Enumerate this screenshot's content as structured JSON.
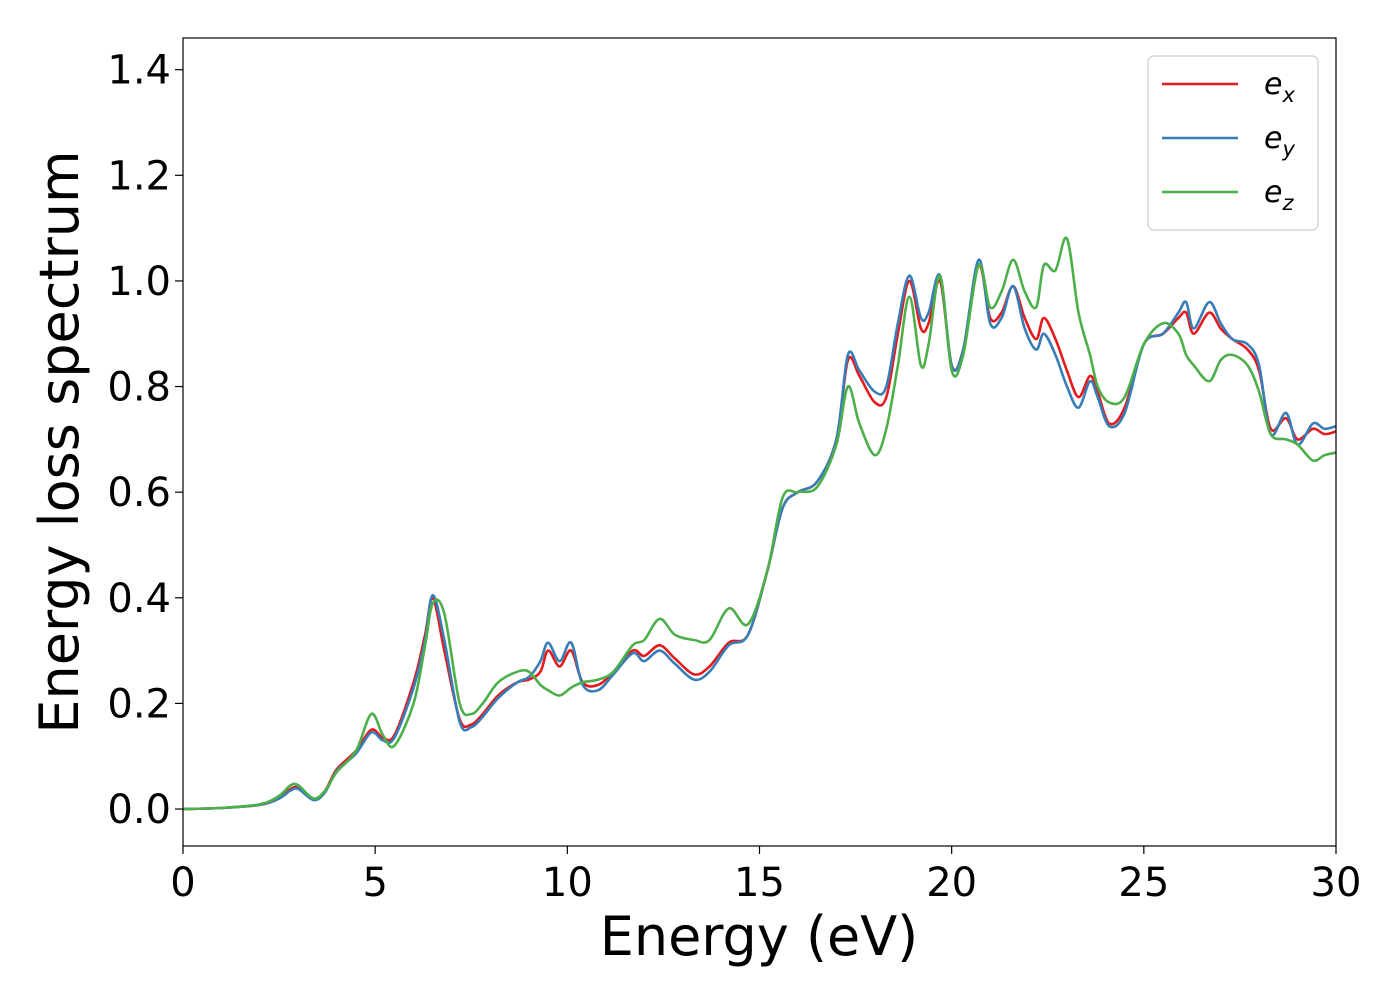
{
  "chart_data": {
    "type": "line",
    "xlabel": "Energy (eV)",
    "ylabel": "Energy loss spectrum",
    "xlim": [
      0,
      30
    ],
    "ylim": [
      -0.07,
      1.46
    ],
    "xticks": [
      0,
      5,
      10,
      15,
      20,
      25,
      30
    ],
    "xtick_labels": [
      "0",
      "5",
      "10",
      "15",
      "20",
      "25",
      "30"
    ],
    "yticks": [
      0.0,
      0.2,
      0.4,
      0.6,
      0.8,
      1.0,
      1.2,
      1.4
    ],
    "ytick_labels": [
      "0.0",
      "0.2",
      "0.4",
      "0.6",
      "0.8",
      "1.0",
      "1.2",
      "1.4"
    ],
    "grid": false,
    "legend_position": "top-right",
    "series": [
      {
        "name_base": "e",
        "name_sub": "x",
        "color": "#e41a1c",
        "x": [
          0,
          1,
          2,
          2.5,
          2.8,
          3.0,
          3.4,
          3.7,
          4.0,
          4.5,
          4.9,
          5.2,
          5.5,
          6.0,
          6.3,
          6.5,
          6.8,
          7.2,
          7.5,
          7.8,
          8.2,
          8.7,
          9.0,
          9.3,
          9.5,
          9.8,
          10.1,
          10.4,
          10.8,
          11.2,
          11.7,
          12.0,
          12.4,
          12.8,
          13.3,
          13.7,
          14.2,
          14.7,
          15.2,
          15.6,
          16.0,
          16.5,
          17.0,
          17.3,
          17.6,
          18.0,
          18.3,
          18.6,
          18.9,
          19.2,
          19.4,
          19.7,
          20.0,
          20.3,
          20.7,
          21.0,
          21.3,
          21.6,
          21.9,
          22.2,
          22.4,
          22.7,
          23.0,
          23.3,
          23.6,
          23.8,
          24.1,
          24.5,
          25.0,
          25.5,
          25.9,
          26.1,
          26.3,
          26.7,
          27.0,
          27.3,
          27.7,
          28.0,
          28.3,
          28.7,
          29.0,
          29.4,
          29.7,
          30.0
        ],
        "y": [
          0,
          0.002,
          0.008,
          0.02,
          0.038,
          0.04,
          0.018,
          0.035,
          0.075,
          0.11,
          0.15,
          0.135,
          0.14,
          0.24,
          0.33,
          0.4,
          0.3,
          0.17,
          0.16,
          0.18,
          0.215,
          0.24,
          0.245,
          0.26,
          0.3,
          0.27,
          0.3,
          0.24,
          0.235,
          0.26,
          0.3,
          0.29,
          0.31,
          0.285,
          0.255,
          0.27,
          0.315,
          0.33,
          0.45,
          0.57,
          0.6,
          0.62,
          0.7,
          0.85,
          0.82,
          0.77,
          0.78,
          0.9,
          1.0,
          0.91,
          0.92,
          1.0,
          0.84,
          0.87,
          1.03,
          0.93,
          0.94,
          0.99,
          0.93,
          0.89,
          0.93,
          0.89,
          0.83,
          0.78,
          0.82,
          0.79,
          0.73,
          0.76,
          0.88,
          0.9,
          0.93,
          0.94,
          0.9,
          0.94,
          0.91,
          0.89,
          0.87,
          0.83,
          0.72,
          0.74,
          0.7,
          0.72,
          0.71,
          0.715
        ]
      },
      {
        "name_base": "e",
        "name_sub": "y",
        "color": "#377eb8",
        "x": [
          0,
          1,
          2,
          2.5,
          2.8,
          3.0,
          3.4,
          3.7,
          4.0,
          4.5,
          4.9,
          5.2,
          5.5,
          6.0,
          6.3,
          6.5,
          6.8,
          7.2,
          7.5,
          7.8,
          8.2,
          8.7,
          9.0,
          9.3,
          9.5,
          9.8,
          10.1,
          10.4,
          10.8,
          11.2,
          11.7,
          12.0,
          12.4,
          12.8,
          13.3,
          13.7,
          14.2,
          14.7,
          15.2,
          15.6,
          16.0,
          16.5,
          17.0,
          17.3,
          17.6,
          18.0,
          18.3,
          18.6,
          18.9,
          19.2,
          19.4,
          19.7,
          20.0,
          20.3,
          20.7,
          21.0,
          21.3,
          21.6,
          21.9,
          22.2,
          22.4,
          22.7,
          23.0,
          23.3,
          23.6,
          23.8,
          24.1,
          24.5,
          25.0,
          25.5,
          25.9,
          26.1,
          26.3,
          26.7,
          27.0,
          27.3,
          27.7,
          28.0,
          28.3,
          28.7,
          29.0,
          29.4,
          29.7,
          30.0
        ],
        "y": [
          0,
          0.002,
          0.008,
          0.02,
          0.035,
          0.038,
          0.017,
          0.032,
          0.072,
          0.105,
          0.145,
          0.13,
          0.135,
          0.23,
          0.32,
          0.405,
          0.32,
          0.165,
          0.155,
          0.175,
          0.21,
          0.24,
          0.25,
          0.28,
          0.315,
          0.28,
          0.315,
          0.235,
          0.225,
          0.255,
          0.295,
          0.28,
          0.3,
          0.275,
          0.245,
          0.26,
          0.31,
          0.33,
          0.45,
          0.57,
          0.6,
          0.62,
          0.7,
          0.86,
          0.83,
          0.79,
          0.8,
          0.92,
          1.01,
          0.93,
          0.94,
          1.01,
          0.84,
          0.87,
          1.04,
          0.92,
          0.93,
          0.99,
          0.91,
          0.87,
          0.9,
          0.86,
          0.8,
          0.76,
          0.81,
          0.78,
          0.725,
          0.75,
          0.88,
          0.9,
          0.94,
          0.96,
          0.91,
          0.96,
          0.92,
          0.89,
          0.88,
          0.84,
          0.71,
          0.75,
          0.69,
          0.73,
          0.72,
          0.725
        ]
      },
      {
        "name_base": "e",
        "name_sub": "z",
        "color": "#4daf4a",
        "x": [
          0,
          1,
          2,
          2.5,
          2.8,
          3.0,
          3.4,
          3.7,
          4.0,
          4.5,
          4.9,
          5.2,
          5.5,
          6.0,
          6.3,
          6.5,
          6.8,
          7.2,
          7.5,
          7.8,
          8.2,
          8.7,
          9.0,
          9.3,
          9.5,
          9.8,
          10.1,
          10.4,
          10.8,
          11.2,
          11.7,
          12.0,
          12.4,
          12.8,
          13.3,
          13.7,
          14.2,
          14.7,
          15.2,
          15.6,
          16.0,
          16.5,
          17.0,
          17.3,
          17.6,
          18.0,
          18.3,
          18.6,
          18.9,
          19.2,
          19.4,
          19.7,
          20.0,
          20.3,
          20.7,
          21.0,
          21.3,
          21.6,
          21.9,
          22.2,
          22.4,
          22.7,
          23.0,
          23.3,
          23.6,
          23.8,
          24.1,
          24.5,
          25.0,
          25.5,
          25.9,
          26.1,
          26.3,
          26.7,
          27.0,
          27.3,
          27.7,
          28.0,
          28.3,
          28.7,
          29.0,
          29.4,
          29.7,
          30.0
        ],
        "y": [
          0,
          0.002,
          0.009,
          0.025,
          0.045,
          0.045,
          0.02,
          0.035,
          0.07,
          0.11,
          0.18,
          0.14,
          0.12,
          0.2,
          0.31,
          0.39,
          0.37,
          0.2,
          0.18,
          0.2,
          0.24,
          0.26,
          0.26,
          0.235,
          0.225,
          0.215,
          0.23,
          0.24,
          0.245,
          0.26,
          0.31,
          0.32,
          0.36,
          0.33,
          0.32,
          0.32,
          0.38,
          0.35,
          0.45,
          0.59,
          0.6,
          0.61,
          0.69,
          0.8,
          0.73,
          0.67,
          0.72,
          0.84,
          0.97,
          0.84,
          0.88,
          1.01,
          0.83,
          0.86,
          1.03,
          0.95,
          0.98,
          1.04,
          0.98,
          0.95,
          1.03,
          1.02,
          1.08,
          0.94,
          0.86,
          0.8,
          0.77,
          0.78,
          0.88,
          0.92,
          0.9,
          0.86,
          0.84,
          0.81,
          0.85,
          0.86,
          0.84,
          0.79,
          0.71,
          0.7,
          0.69,
          0.66,
          0.67,
          0.675
        ]
      }
    ]
  }
}
